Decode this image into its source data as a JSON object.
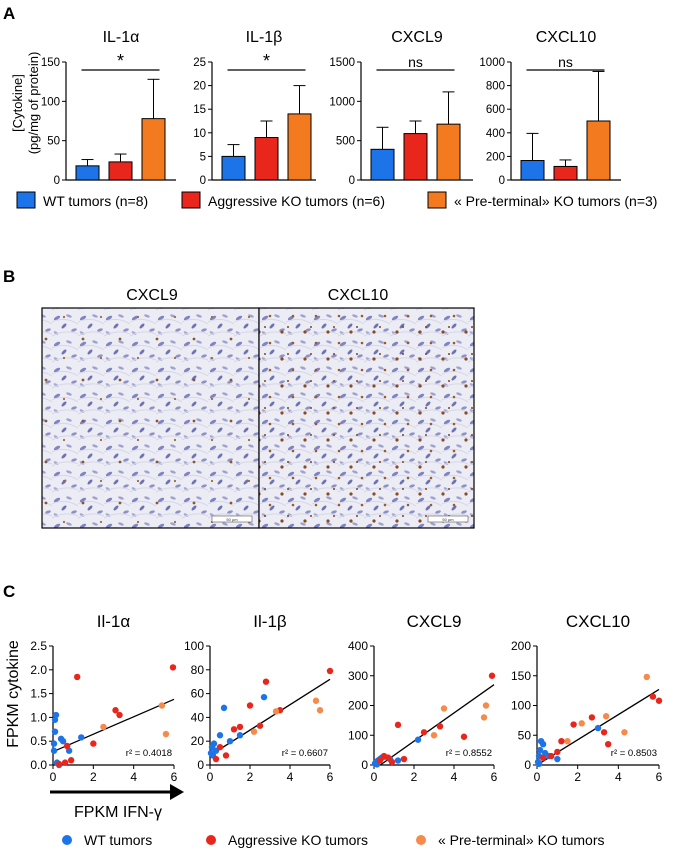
{
  "panel_labels": {
    "a": "A",
    "b": "B",
    "c": "C"
  },
  "colors": {
    "wt": "#1c74e8",
    "aggressive": "#e8261c",
    "preterminal": "#f47a20",
    "scatter_preterminal": "#f68a4a"
  },
  "panel_a": {
    "ylabel_line1": "[Cytokine]",
    "ylabel_line2": "(pg/mg of protein)",
    "legend": [
      {
        "label": "WT tumors (n=8)",
        "color": "#1c74e8"
      },
      {
        "label": "Aggressive KO tumors (n=6)",
        "color": "#e8261c"
      },
      {
        "label": "« Pre-terminal» KO tumors (n=3)",
        "color": "#f47a20"
      }
    ]
  },
  "panel_b": {
    "labels": [
      "CXCL9",
      "CXCL10"
    ],
    "scalebar": "50 µm"
  },
  "panel_c": {
    "ylabel": "FPKM cytokine",
    "xlabel": "FPKM IFN-γ",
    "legend": [
      {
        "label": "WT tumors",
        "color": "#1c74e8"
      },
      {
        "label": "Aggressive KO tumors",
        "color": "#e8261c"
      },
      {
        "label": "« Pre-terminal» KO tumors",
        "color": "#f68a4a"
      }
    ]
  },
  "chart_data": [
    {
      "type": "bar",
      "title": "IL-1α",
      "categories": [
        "WT tumors (n=8)",
        "Aggressive KO tumors (n=6)",
        "« Pre-terminal» KO tumors (n=3)"
      ],
      "values": [
        18,
        23,
        78
      ],
      "errors": [
        8,
        10,
        50
      ],
      "ylim": [
        0,
        150
      ],
      "yticks": [
        0,
        50,
        100,
        150
      ],
      "significance": "*"
    },
    {
      "type": "bar",
      "title": "IL-1β",
      "categories": [
        "WT tumors (n=8)",
        "Aggressive KO tumors (n=6)",
        "« Pre-terminal» KO tumors (n=3)"
      ],
      "values": [
        5,
        9,
        14
      ],
      "errors": [
        2.5,
        3.5,
        6
      ],
      "ylim": [
        0,
        25
      ],
      "yticks": [
        0,
        5,
        10,
        15,
        20,
        25
      ],
      "significance": "*"
    },
    {
      "type": "bar",
      "title": "CXCL9",
      "categories": [
        "WT tumors (n=8)",
        "Aggressive KO tumors (n=6)",
        "« Pre-terminal» KO tumors (n=3)"
      ],
      "values": [
        390,
        590,
        710
      ],
      "errors": [
        280,
        160,
        410
      ],
      "ylim": [
        0,
        1500
      ],
      "yticks": [
        0,
        500,
        1000,
        1500
      ],
      "significance": "ns"
    },
    {
      "type": "bar",
      "title": "CXCL10",
      "categories": [
        "WT tumors (n=8)",
        "Aggressive KO tumors (n=6)",
        "« Pre-terminal» KO tumors (n=3)"
      ],
      "values": [
        165,
        115,
        500
      ],
      "errors": [
        230,
        55,
        420
      ],
      "ylim": [
        0,
        1000
      ],
      "yticks": [
        0,
        200,
        400,
        600,
        800,
        1000
      ],
      "significance": "ns"
    },
    {
      "type": "scatter",
      "title": "Il-1α",
      "ylim": [
        0,
        2.5
      ],
      "yticks": [
        "0.0",
        "0.5",
        "1.0",
        "1.5",
        "2.0",
        "2.5"
      ],
      "xlim": [
        0,
        6
      ],
      "xticks": [
        0,
        2,
        4,
        6
      ],
      "r2": "r² = 0.4018",
      "fit": [
        [
          0,
          0.28
        ],
        [
          6,
          1.38
        ]
      ],
      "series": [
        {
          "name": "WT tumors",
          "points": [
            [
              0.05,
              0.3
            ],
            [
              0.05,
              0.45
            ],
            [
              0.1,
              0.7
            ],
            [
              0.1,
              0.95
            ],
            [
              0.2,
              0.05
            ],
            [
              0.3,
              0.0
            ],
            [
              0.4,
              0.55
            ],
            [
              0.5,
              0.5
            ],
            [
              0.8,
              0.3
            ],
            [
              1.4,
              0.58
            ],
            [
              0.15,
              1.05
            ]
          ]
        },
        {
          "name": "Aggressive KO tumors",
          "points": [
            [
              0.3,
              0.02
            ],
            [
              0.6,
              0.05
            ],
            [
              0.7,
              0.4
            ],
            [
              1.2,
              1.85
            ],
            [
              2.0,
              0.45
            ],
            [
              3.1,
              1.15
            ],
            [
              3.3,
              1.05
            ],
            [
              5.95,
              2.05
            ],
            [
              0.9,
              0.1
            ]
          ]
        },
        {
          "name": "« Pre-terminal» KO tumors",
          "points": [
            [
              2.5,
              0.8
            ],
            [
              5.4,
              1.25
            ],
            [
              5.6,
              0.65
            ]
          ]
        }
      ]
    },
    {
      "type": "scatter",
      "title": "Il-1β",
      "ylim": [
        0,
        100
      ],
      "yticks": [
        0,
        20,
        40,
        60,
        80,
        100
      ],
      "xlim": [
        0,
        6
      ],
      "xticks": [
        0,
        2,
        4,
        6
      ],
      "r2": "r² = 0.6607",
      "fit": [
        [
          0,
          8
        ],
        [
          6,
          72
        ]
      ],
      "series": [
        {
          "name": "WT tumors",
          "points": [
            [
              0.05,
              10
            ],
            [
              0.1,
              15
            ],
            [
              0.2,
              18
            ],
            [
              0.3,
              12
            ],
            [
              0.5,
              25
            ],
            [
              0.7,
              48
            ],
            [
              1.0,
              20
            ],
            [
              1.5,
              25
            ],
            [
              2.7,
              57
            ],
            [
              0.15,
              8
            ]
          ]
        },
        {
          "name": "Aggressive KO tumors",
          "points": [
            [
              0.3,
              5
            ],
            [
              0.5,
              15
            ],
            [
              0.8,
              8
            ],
            [
              1.2,
              30
            ],
            [
              1.5,
              32
            ],
            [
              2.0,
              50
            ],
            [
              2.5,
              33
            ],
            [
              2.8,
              70
            ],
            [
              3.5,
              46
            ],
            [
              6.0,
              79
            ]
          ]
        },
        {
          "name": "« Pre-terminal» KO tumors",
          "points": [
            [
              2.2,
              28
            ],
            [
              3.3,
              45
            ],
            [
              5.3,
              54
            ],
            [
              5.5,
              46
            ]
          ]
        }
      ]
    },
    {
      "type": "scatter",
      "title": "CXCL9",
      "ylim": [
        0,
        400
      ],
      "yticks": [
        0,
        100,
        200,
        300,
        400
      ],
      "xlim": [
        0,
        6
      ],
      "xticks": [
        0,
        2,
        4,
        6
      ],
      "r2": "r² = 0.8552",
      "fit": [
        [
          0,
          -15
        ],
        [
          6,
          270
        ]
      ],
      "series": [
        {
          "name": "WT tumors",
          "points": [
            [
              0.05,
              5
            ],
            [
              0.1,
              10
            ],
            [
              0.2,
              15
            ],
            [
              0.3,
              20
            ],
            [
              0.4,
              25
            ],
            [
              0.5,
              28
            ],
            [
              0.8,
              20
            ],
            [
              1.2,
              15
            ],
            [
              2.2,
              85
            ],
            [
              0.15,
              2
            ]
          ]
        },
        {
          "name": "Aggressive KO tumors",
          "points": [
            [
              0.3,
              15
            ],
            [
              0.5,
              30
            ],
            [
              0.7,
              25
            ],
            [
              1.2,
              135
            ],
            [
              1.5,
              20
            ],
            [
              2.5,
              110
            ],
            [
              3.3,
              130
            ],
            [
              4.5,
              95
            ],
            [
              5.9,
              300
            ],
            [
              0.9,
              10
            ]
          ]
        },
        {
          "name": "« Pre-terminal» KO tumors",
          "points": [
            [
              3.0,
              100
            ],
            [
              3.5,
              190
            ],
            [
              5.5,
              160
            ],
            [
              5.6,
              200
            ]
          ]
        }
      ]
    },
    {
      "type": "scatter",
      "title": "CXCL10",
      "ylim": [
        0,
        200
      ],
      "yticks": [
        0,
        50,
        100,
        150,
        200
      ],
      "xlim": [
        0,
        6
      ],
      "xticks": [
        0,
        2,
        4,
        6
      ],
      "r2": "r² = 0.8503",
      "fit": [
        [
          0,
          0
        ],
        [
          6,
          127
        ]
      ],
      "series": [
        {
          "name": "WT tumors",
          "points": [
            [
              0.05,
              5
            ],
            [
              0.1,
              15
            ],
            [
              0.15,
              25
            ],
            [
              0.2,
              40
            ],
            [
              0.3,
              35
            ],
            [
              0.4,
              20
            ],
            [
              0.6,
              15
            ],
            [
              1.0,
              10
            ],
            [
              3.0,
              62
            ],
            [
              0.1,
              2
            ]
          ]
        },
        {
          "name": "Aggressive KO tumors",
          "points": [
            [
              0.3,
              12
            ],
            [
              0.7,
              15
            ],
            [
              1.0,
              22
            ],
            [
              1.2,
              40
            ],
            [
              1.8,
              68
            ],
            [
              2.7,
              80
            ],
            [
              3.3,
              55
            ],
            [
              3.5,
              35
            ],
            [
              6.0,
              108
            ],
            [
              5.7,
              115
            ]
          ]
        },
        {
          "name": "« Pre-terminal» KO tumors",
          "points": [
            [
              2.2,
              70
            ],
            [
              3.4,
              82
            ],
            [
              4.3,
              55
            ],
            [
              5.4,
              148
            ],
            [
              1.5,
              40
            ]
          ]
        }
      ]
    }
  ]
}
